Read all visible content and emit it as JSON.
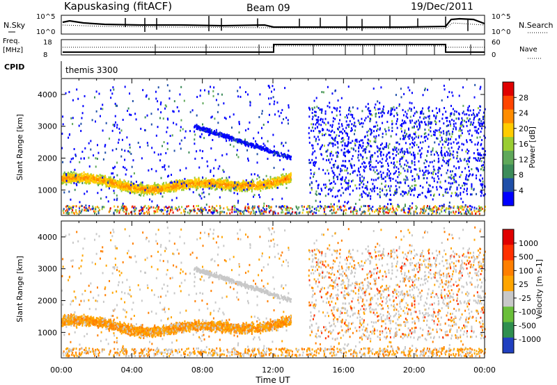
{
  "header": {
    "station": "Kapuskasing (fitACF)",
    "beam": "Beam 09",
    "date": "19/Dec/2011"
  },
  "noise_panel": {
    "left_label": "N.Sky",
    "right_label": "N.Search",
    "left_ticks": [
      "10^5",
      "10^0"
    ],
    "right_ticks": [
      "10^5",
      "10^0"
    ]
  },
  "freq_panel": {
    "left_label_line1": "Freq.",
    "left_label_line2": "[MHz]",
    "right_label": "Nave",
    "left_ticks": [
      "18",
      "8"
    ],
    "right_ticks": [
      "60",
      "0"
    ]
  },
  "cpid": {
    "label": "CPID",
    "value": "themis 3300"
  },
  "colors": {
    "power": [
      "#0000ff",
      "#1f4fa8",
      "#3c8c5a",
      "#5fa85a",
      "#9acd32",
      "#ffcc00",
      "#ff8c00",
      "#ff4500",
      "#e00000"
    ],
    "velocity": [
      "#2040c0",
      "#2f8f4f",
      "#6abf3a",
      "#c8c8c8",
      "#ffa500",
      "#ff7f00",
      "#ff3000",
      "#e00000"
    ]
  },
  "chart_data": [
    {
      "type": "heatmap",
      "name": "power",
      "ylabel": "Slant Range [km]",
      "yticks": [
        1000,
        2000,
        3000,
        4000
      ],
      "ylim": [
        200,
        4500
      ],
      "xlim": [
        0,
        24
      ],
      "xticks": [
        "00:00",
        "04:00",
        "08:00",
        "12:00",
        "16:00",
        "20:00",
        "00:00"
      ],
      "colorbar": {
        "label": "Power [dB]",
        "ticks": [
          28,
          24,
          20,
          16,
          12,
          8,
          4
        ],
        "range": [
          0,
          30
        ]
      }
    },
    {
      "type": "heatmap",
      "name": "velocity",
      "ylabel": "Slant Range [km]",
      "yticks": [
        1000,
        2000,
        3000,
        4000
      ],
      "ylim": [
        200,
        4500
      ],
      "xlim": [
        0,
        24
      ],
      "xticks": [
        "00:00",
        "04:00",
        "08:00",
        "12:00",
        "16:00",
        "20:00",
        "00:00"
      ],
      "xlabel": "Time UT",
      "colorbar": {
        "label": "Velocity [m s-1]",
        "ticks": [
          1000,
          500,
          100,
          25,
          -25,
          -100,
          -500,
          -1000
        ]
      }
    }
  ]
}
